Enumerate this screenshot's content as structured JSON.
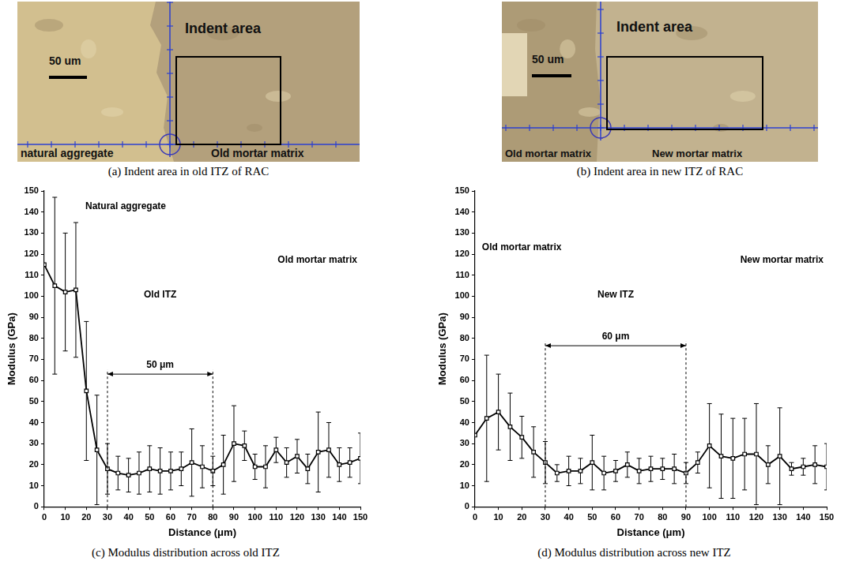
{
  "panels": [
    {
      "caption": "(a)  Indent area in old ITZ of RAC",
      "image": {
        "title": "Indent area",
        "scale_bar": "50 um",
        "left_label": "natural aggregate",
        "right_label": "Old mortar matrix"
      }
    },
    {
      "caption": "(b)  Indent area in new ITZ of RAC",
      "image": {
        "title": "Indent area",
        "scale_bar": "50 um",
        "left_label": "Old mortar matrix",
        "right_label": "New mortar matrix"
      }
    }
  ],
  "chart_data": [
    {
      "type": "line",
      "caption": "(c) Modulus distribution across old ITZ",
      "x_label": "Distance (μm)",
      "y_label": "Modulus (GPa)",
      "x": [
        0,
        5,
        10,
        15,
        20,
        25,
        30,
        35,
        40,
        45,
        50,
        55,
        60,
        65,
        70,
        75,
        80,
        85,
        90,
        95,
        100,
        105,
        110,
        115,
        120,
        125,
        130,
        135,
        140,
        145,
        150
      ],
      "values": [
        115,
        105,
        102,
        103,
        55,
        27,
        18,
        16,
        15,
        16,
        18,
        17,
        17,
        18,
        21,
        19,
        17,
        20,
        30,
        29,
        19,
        19,
        27,
        21,
        24,
        18,
        26,
        27,
        20,
        21,
        23
      ],
      "errors": [
        0,
        42,
        28,
        32,
        33,
        26,
        12,
        8,
        8,
        10,
        11,
        11,
        9,
        8,
        16,
        10,
        7,
        14,
        18,
        7,
        6,
        10,
        6,
        7,
        8,
        7,
        19,
        13,
        8,
        7,
        12
      ],
      "color": "#000000",
      "marker": "square",
      "grid": false,
      "xlim": [
        0,
        150
      ],
      "xticks": [
        0,
        10,
        20,
        30,
        40,
        50,
        60,
        70,
        80,
        90,
        100,
        110,
        120,
        130,
        140,
        150
      ],
      "ylim": [
        0,
        150
      ],
      "yticks": [
        0,
        10,
        20,
        30,
        40,
        50,
        60,
        70,
        80,
        90,
        100,
        110,
        120,
        130,
        140,
        150
      ],
      "annotations": {
        "left": "Natural aggregate",
        "right": "Old mortar matrix",
        "zone": {
          "label": "Old ITZ",
          "width_label": "50 μm",
          "from": 30,
          "to": 80
        }
      }
    },
    {
      "type": "line",
      "caption": "(d) Modulus distribution across new ITZ",
      "x_label": "Distance (μm)",
      "y_label": "Modulus (GPa)",
      "x": [
        0,
        5,
        10,
        15,
        20,
        25,
        30,
        35,
        40,
        45,
        50,
        55,
        60,
        65,
        70,
        75,
        80,
        85,
        90,
        95,
        100,
        105,
        110,
        115,
        120,
        125,
        130,
        135,
        140,
        145,
        150
      ],
      "values": [
        34,
        42,
        45,
        38,
        33,
        26,
        21,
        16,
        17,
        17,
        21,
        16,
        17,
        20,
        17,
        18,
        18,
        18,
        16,
        21,
        29,
        24,
        23,
        25,
        25,
        20,
        24,
        18,
        19,
        20,
        19
      ],
      "errors": [
        0,
        30,
        18,
        16,
        10,
        12,
        10,
        4,
        7,
        6,
        13,
        8,
        5,
        6,
        6,
        6,
        5,
        7,
        5,
        5,
        20,
        20,
        19,
        17,
        24,
        9,
        23,
        3,
        4,
        9,
        11
      ],
      "color": "#000000",
      "marker": "square",
      "grid": false,
      "xlim": [
        0,
        150
      ],
      "xticks": [
        0,
        10,
        20,
        30,
        40,
        50,
        60,
        70,
        80,
        90,
        100,
        110,
        120,
        130,
        140,
        150
      ],
      "ylim": [
        0,
        150
      ],
      "yticks": [
        0,
        10,
        20,
        30,
        40,
        50,
        60,
        70,
        80,
        90,
        100,
        110,
        120,
        130,
        140,
        150
      ],
      "annotations": {
        "left": "Old mortar matrix",
        "right": "New mortar matrix",
        "zone": {
          "label": "New ITZ",
          "width_label": "60 μm",
          "from": 30,
          "to": 90
        }
      }
    }
  ]
}
